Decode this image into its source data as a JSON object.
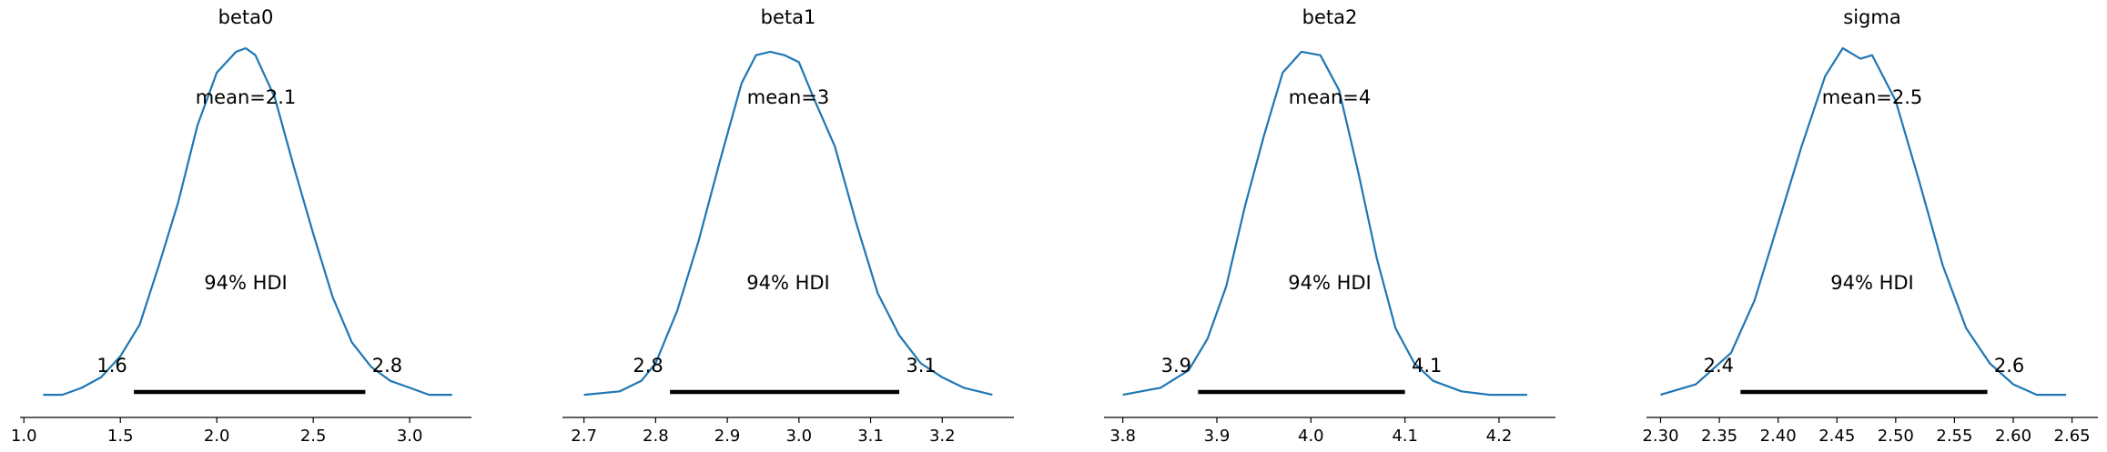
{
  "colors": {
    "line": "#1f77b4",
    "hdi": "#000000",
    "axis": "#000000"
  },
  "chart_data": [
    {
      "type": "line",
      "title": "beta0",
      "xlim": [
        0.98,
        3.32
      ],
      "ticks": [
        1.0,
        1.5,
        2.0,
        2.5,
        3.0
      ],
      "tick_labels": [
        "1.0",
        "1.5",
        "2.0",
        "2.5",
        "3.0"
      ],
      "mean_label": "mean=2.1",
      "hdi_label": "94% HDI",
      "hdi": [
        1.57,
        2.77
      ],
      "hdi_lower_label": "1.6",
      "hdi_upper_label": "2.8",
      "x": [
        1.1,
        1.2,
        1.3,
        1.4,
        1.5,
        1.6,
        1.7,
        1.8,
        1.9,
        2.0,
        2.1,
        2.15,
        2.2,
        2.3,
        2.4,
        2.5,
        2.6,
        2.7,
        2.8,
        2.9,
        3.0,
        3.1,
        3.22
      ],
      "y": [
        0.01,
        0.01,
        0.03,
        0.06,
        0.12,
        0.21,
        0.38,
        0.56,
        0.78,
        0.93,
        0.99,
        1.0,
        0.98,
        0.86,
        0.66,
        0.47,
        0.29,
        0.16,
        0.09,
        0.05,
        0.03,
        0.01,
        0.01
      ]
    },
    {
      "type": "line",
      "title": "beta1",
      "xlim": [
        2.67,
        3.3
      ],
      "ticks": [
        2.7,
        2.8,
        2.9,
        3.0,
        3.1,
        3.2
      ],
      "tick_labels": [
        "2.7",
        "2.8",
        "2.9",
        "3.0",
        "3.1",
        "3.2"
      ],
      "mean_label": "mean=3",
      "hdi_label": "94% HDI",
      "hdi": [
        2.82,
        3.14
      ],
      "hdi_lower_label": "2.8",
      "hdi_upper_label": "3.1",
      "x": [
        2.7,
        2.75,
        2.78,
        2.8,
        2.83,
        2.86,
        2.89,
        2.92,
        2.94,
        2.96,
        2.98,
        3.0,
        3.02,
        3.05,
        3.08,
        3.11,
        3.14,
        3.17,
        3.2,
        3.23,
        3.27
      ],
      "y": [
        0.01,
        0.02,
        0.05,
        0.1,
        0.25,
        0.45,
        0.68,
        0.9,
        0.98,
        0.99,
        0.98,
        0.96,
        0.86,
        0.72,
        0.5,
        0.3,
        0.18,
        0.1,
        0.06,
        0.03,
        0.01
      ]
    },
    {
      "type": "line",
      "title": "beta2",
      "xlim": [
        3.78,
        4.26
      ],
      "ticks": [
        3.8,
        3.9,
        4.0,
        4.1,
        4.2
      ],
      "tick_labels": [
        "3.8",
        "3.9",
        "4.0",
        "4.1",
        "4.2"
      ],
      "mean_label": "mean=4",
      "hdi_label": "94% HDI",
      "hdi": [
        3.88,
        4.1
      ],
      "hdi_lower_label": "3.9",
      "hdi_upper_label": "4.1",
      "x": [
        3.8,
        3.84,
        3.87,
        3.89,
        3.91,
        3.93,
        3.95,
        3.97,
        3.99,
        4.01,
        4.03,
        4.05,
        4.07,
        4.09,
        4.11,
        4.13,
        4.16,
        4.19,
        4.23
      ],
      "y": [
        0.01,
        0.03,
        0.08,
        0.17,
        0.32,
        0.55,
        0.75,
        0.93,
        0.99,
        0.98,
        0.88,
        0.65,
        0.4,
        0.2,
        0.1,
        0.05,
        0.02,
        0.01,
        0.01
      ]
    },
    {
      "type": "line",
      "title": "sigma",
      "xlim": [
        2.288,
        2.672
      ],
      "ticks": [
        2.3,
        2.35,
        2.4,
        2.45,
        2.5,
        2.55,
        2.6,
        2.65
      ],
      "tick_labels": [
        "2.30",
        "2.35",
        "2.40",
        "2.45",
        "2.50",
        "2.55",
        "2.60",
        "2.65"
      ],
      "mean_label": "mean=2.5",
      "hdi_label": "94% HDI",
      "hdi": [
        2.368,
        2.578
      ],
      "hdi_lower_label": "2.4",
      "hdi_upper_label": "2.6",
      "x": [
        2.3,
        2.33,
        2.36,
        2.38,
        2.4,
        2.42,
        2.44,
        2.455,
        2.47,
        2.48,
        2.5,
        2.52,
        2.54,
        2.56,
        2.58,
        2.6,
        2.62,
        2.645
      ],
      "y": [
        0.01,
        0.04,
        0.13,
        0.28,
        0.5,
        0.72,
        0.92,
        1.0,
        0.97,
        0.98,
        0.85,
        0.62,
        0.38,
        0.2,
        0.1,
        0.04,
        0.01,
        0.01
      ]
    }
  ]
}
